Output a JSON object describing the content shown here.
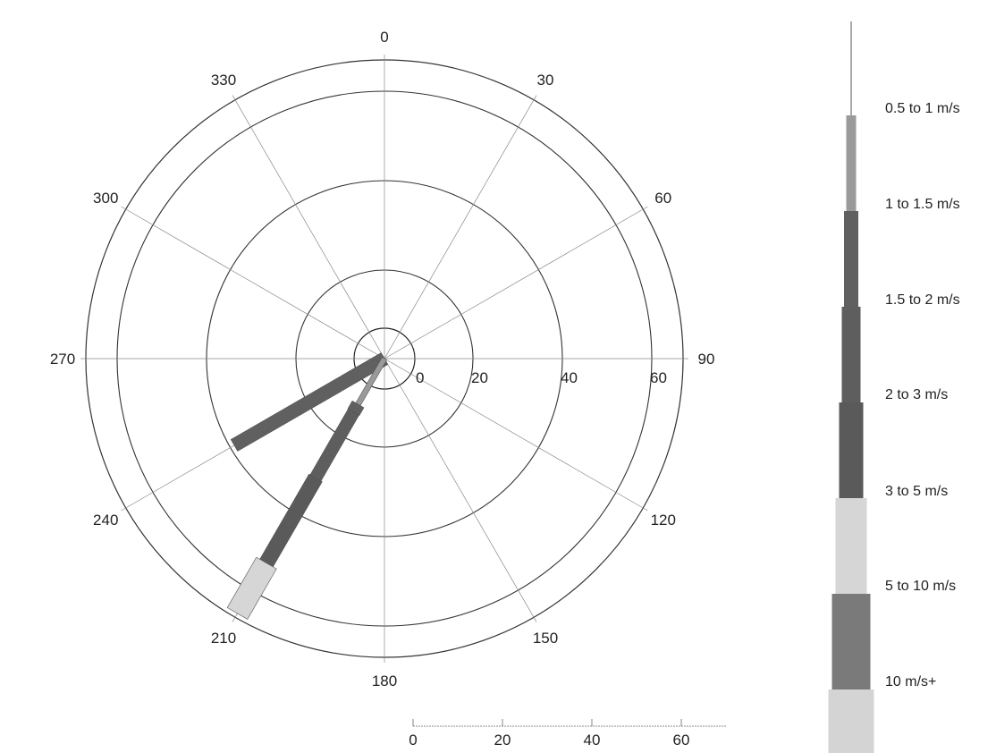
{
  "chart_data": {
    "type": "wind-rose",
    "angle_labels": [
      "0",
      "30",
      "60",
      "90",
      "120",
      "150",
      "180",
      "210",
      "240",
      "270",
      "300",
      "330"
    ],
    "radial_ticks": [
      0,
      20,
      40,
      60
    ],
    "radial_max": 67,
    "inner_radius": 7,
    "scale_bar_ticks": [
      0,
      20,
      40,
      60
    ],
    "scale_bar_max": 70,
    "speed_bins": [
      {
        "label": "0.5 to 1 m/s",
        "color": "#9a9a9a"
      },
      {
        "label": "1 to 1.5 m/s",
        "color": "#606060"
      },
      {
        "label": "1.5 to 2 m/s",
        "color": "#5e5e5e"
      },
      {
        "label": "2 to 3 m/s",
        "color": "#5a5a5a"
      },
      {
        "label": "3 to 5 m/s",
        "color": "#d6d6d6"
      },
      {
        "label": "5 to 10 m/s",
        "color": "#7a7a7a"
      },
      {
        "label": "10 m/s+",
        "color": "#d4d4d4"
      }
    ],
    "series": [
      {
        "direction_deg": 240,
        "segments": [
          {
            "bin": "1 to 1.5 m/s",
            "end": 39
          }
        ]
      },
      {
        "direction_deg": 210,
        "segments": [
          {
            "bin": "0.5 to 1 m/s",
            "end": 12
          },
          {
            "bin": "1 to 1.5 m/s",
            "end": 14
          },
          {
            "bin": "1.5 to 2 m/s",
            "end": 31
          },
          {
            "bin": "2 to 3 m/s",
            "end": 53
          },
          {
            "bin": "3 to 5 m/s",
            "end": 66
          }
        ]
      }
    ]
  }
}
